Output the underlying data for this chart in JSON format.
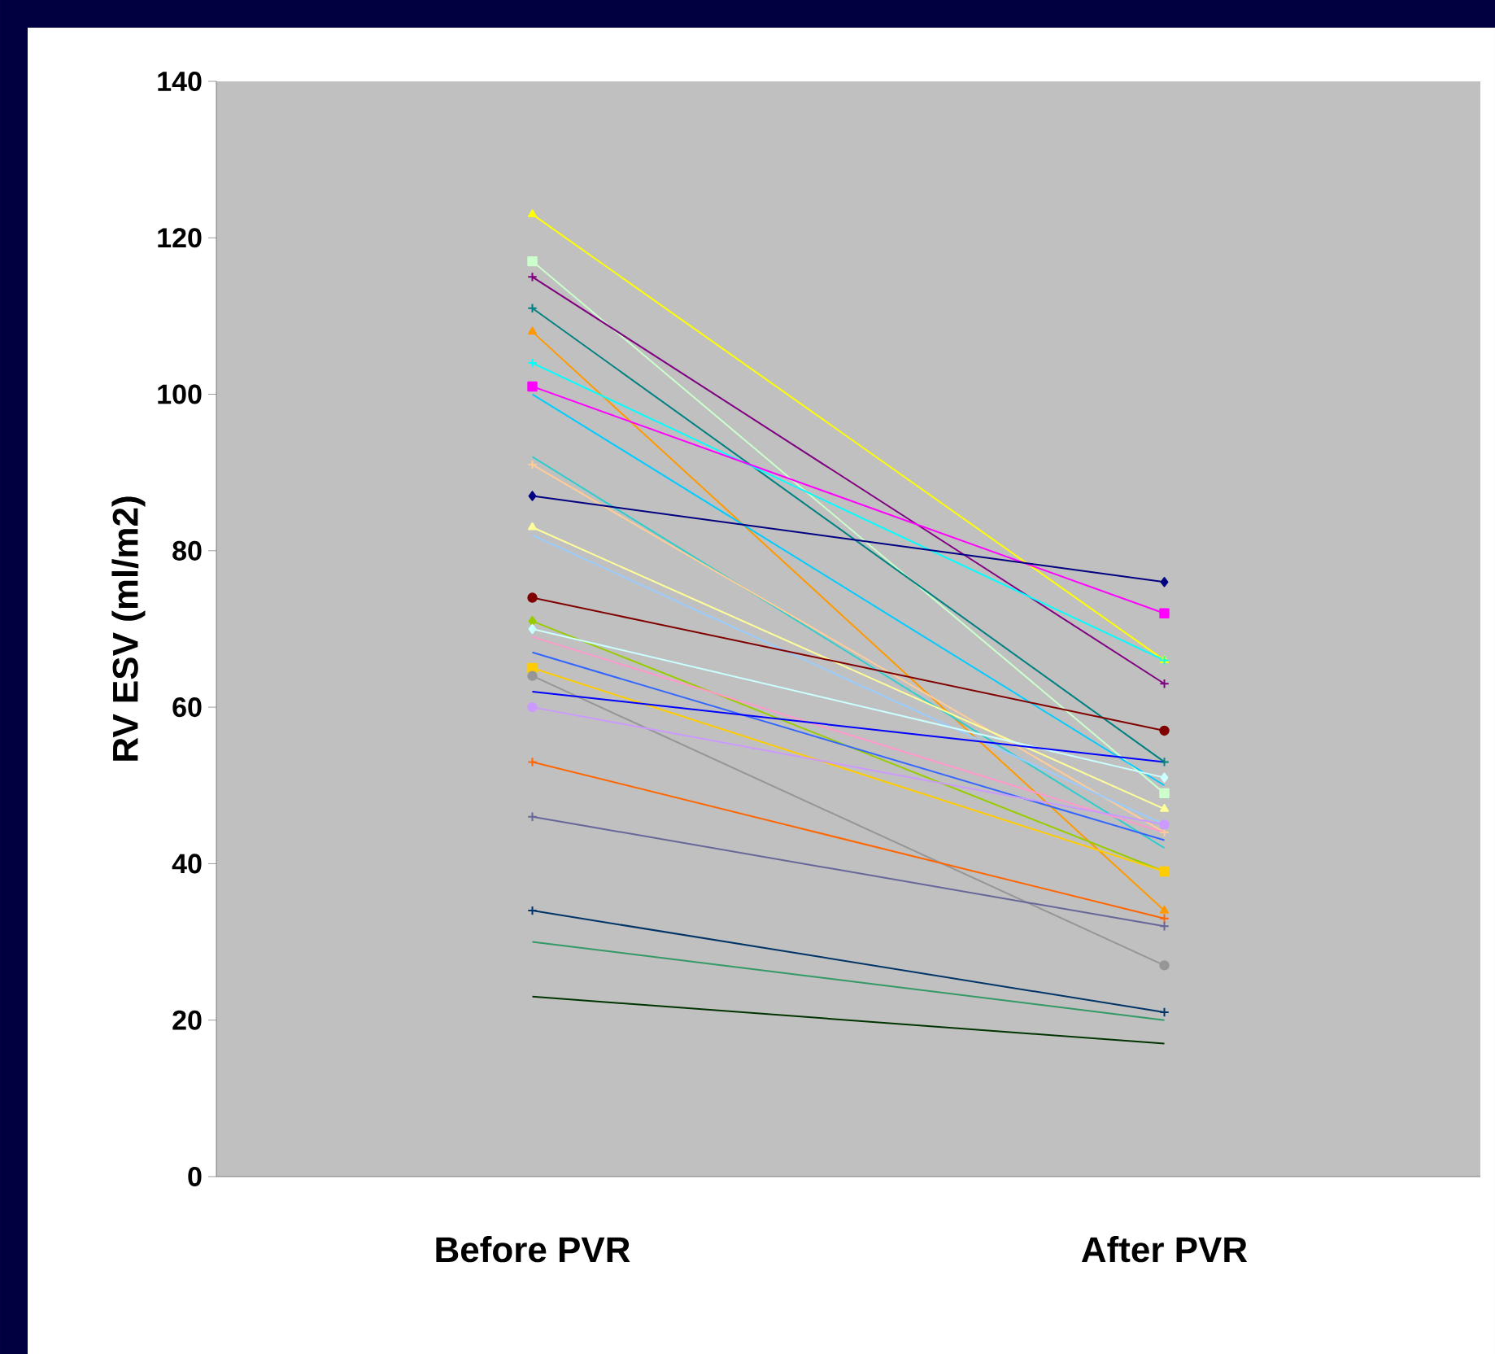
{
  "chart_data": {
    "type": "line",
    "ylabel": "RV ESV (ml/m2)",
    "categories": [
      "Before PVR",
      "After PVR"
    ],
    "ylim": [
      0,
      140
    ],
    "yticks": [
      0,
      20,
      40,
      60,
      80,
      100,
      120,
      140
    ],
    "grid": false,
    "series": [
      {
        "color": "#ffff00",
        "marker": "triangle",
        "values": [
          123,
          66
        ]
      },
      {
        "color": "#ccffcc",
        "marker": "square",
        "values": [
          117,
          49
        ]
      },
      {
        "color": "#800080",
        "marker": "cross",
        "values": [
          115,
          63
        ]
      },
      {
        "color": "#008080",
        "marker": "cross",
        "values": [
          111,
          53
        ]
      },
      {
        "color": "#ff9900",
        "marker": "triangle",
        "values": [
          108,
          34
        ]
      },
      {
        "color": "#00ffff",
        "marker": "cross",
        "values": [
          104,
          66
        ]
      },
      {
        "color": "#ff00ff",
        "marker": "square",
        "values": [
          101,
          72
        ]
      },
      {
        "color": "#00ccff",
        "marker": "none",
        "values": [
          100,
          50
        ]
      },
      {
        "color": "#33cccc",
        "marker": "none",
        "values": [
          92,
          42
        ]
      },
      {
        "color": "#ffcc99",
        "marker": "cross",
        "values": [
          91,
          44
        ]
      },
      {
        "color": "#000080",
        "marker": "diamond",
        "values": [
          87,
          76
        ]
      },
      {
        "color": "#ffff99",
        "marker": "triangle",
        "values": [
          83,
          47
        ]
      },
      {
        "color": "#99ccff",
        "marker": "none",
        "values": [
          82,
          45
        ]
      },
      {
        "color": "#800000",
        "marker": "circle",
        "values": [
          74,
          57
        ]
      },
      {
        "color": "#99cc00",
        "marker": "diamond",
        "values": [
          71,
          39
        ]
      },
      {
        "color": "#ccffff",
        "marker": "diamond",
        "values": [
          70,
          51
        ]
      },
      {
        "color": "#ff99cc",
        "marker": "none",
        "values": [
          69,
          44
        ]
      },
      {
        "color": "#3366ff",
        "marker": "none",
        "values": [
          67,
          43
        ]
      },
      {
        "color": "#ffcc00",
        "marker": "square",
        "values": [
          65,
          39
        ]
      },
      {
        "color": "#969696",
        "marker": "circle",
        "values": [
          64,
          27
        ]
      },
      {
        "color": "#0000ff",
        "marker": "none",
        "values": [
          62,
          53
        ]
      },
      {
        "color": "#cc99ff",
        "marker": "circle",
        "values": [
          60,
          45
        ]
      },
      {
        "color": "#ff6600",
        "marker": "cross",
        "values": [
          53,
          33
        ]
      },
      {
        "color": "#666699",
        "marker": "cross",
        "values": [
          46,
          32
        ]
      },
      {
        "color": "#003366",
        "marker": "cross",
        "values": [
          34,
          21
        ]
      },
      {
        "color": "#339966",
        "marker": "none",
        "values": [
          30,
          20
        ]
      },
      {
        "color": "#003300",
        "marker": "none",
        "values": [
          23,
          17
        ]
      }
    ]
  }
}
